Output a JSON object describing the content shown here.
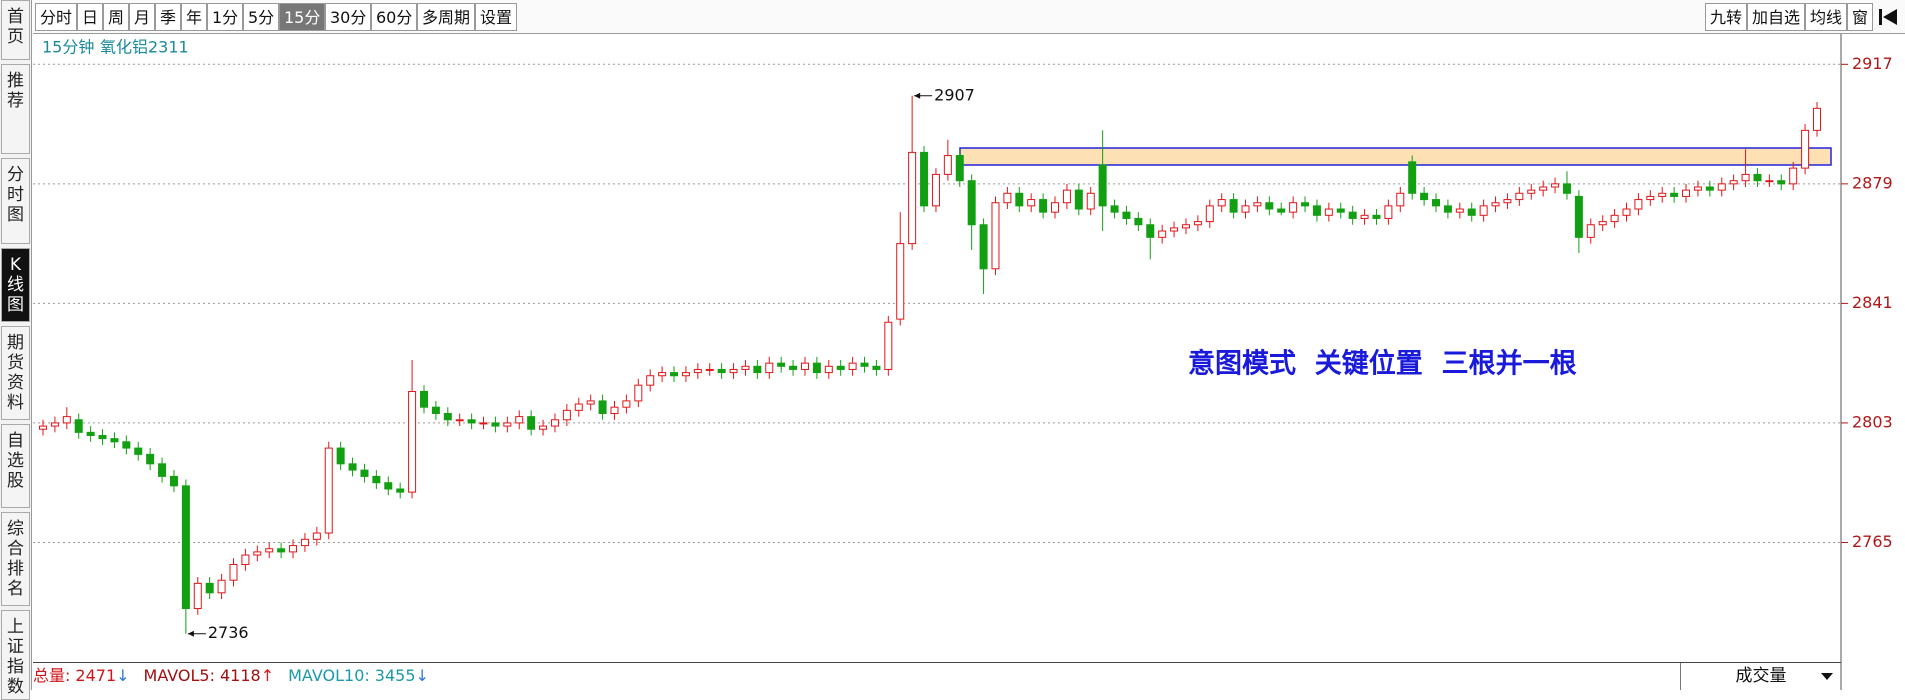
{
  "sidebar": [
    "首页",
    "推荐",
    "分时图",
    "K线图",
    "期货资料",
    "自选股",
    "综合排名",
    "上证指数"
  ],
  "sidebar_active": "K线图",
  "toolbar": {
    "periods": [
      "分时",
      "日",
      "周",
      "月",
      "季",
      "年",
      "1分",
      "5分",
      "15分",
      "30分",
      "60分",
      "多周期",
      "设置"
    ],
    "selected": "15分",
    "right_tools": [
      "九转",
      "加自选",
      "均线",
      "窗"
    ]
  },
  "chart_data": {
    "type": "candlestick",
    "title": "15分钟",
    "subtitle": "氧化铝2311",
    "open": [
      2801,
      2802,
      2803,
      2804,
      2800,
      2799,
      2798,
      2797,
      2795,
      2793,
      2790,
      2786,
      2783,
      2744,
      2752,
      2749,
      2753,
      2758,
      2761,
      2762,
      2763,
      2762,
      2764,
      2766,
      2768,
      2795,
      2790,
      2788,
      2786,
      2784,
      2782,
      2781,
      2813,
      2808,
      2806,
      2804,
      2804,
      2803,
      2803,
      2802,
      2803,
      2805,
      2801,
      2802,
      2804,
      2807,
      2809,
      2810,
      2806,
      2808,
      2810,
      2815,
      2818,
      2819,
      2818,
      2819,
      2820,
      2820,
      2819,
      2820,
      2821,
      2819,
      2822,
      2821,
      2820,
      2822,
      2819,
      2821,
      2820,
      2822,
      2821,
      2820,
      2836,
      2860,
      2889,
      2872,
      2882,
      2888,
      2880,
      2866,
      2852,
      2873,
      2876,
      2872,
      2874,
      2870,
      2873,
      2877,
      2871,
      2885,
      2872,
      2870,
      2868,
      2866,
      2862,
      2864,
      2865,
      2866,
      2867,
      2872,
      2874,
      2870,
      2872,
      2873,
      2871,
      2870,
      2873,
      2872,
      2869,
      2871,
      2870,
      2868,
      2869,
      2868,
      2872,
      2886,
      2876,
      2874,
      2872,
      2870,
      2871,
      2869,
      2872,
      2873,
      2874,
      2876,
      2877,
      2878,
      2879,
      2875,
      2862,
      2866,
      2867,
      2869,
      2871,
      2874,
      2875,
      2876,
      2875,
      2877,
      2878,
      2877,
      2879,
      2880,
      2882,
      2880,
      2880,
      2879,
      2884,
      2896
    ],
    "high": [
      2804,
      2805,
      2808,
      2806,
      2802,
      2801,
      2800,
      2799,
      2797,
      2795,
      2792,
      2788,
      2785,
      2754,
      2754,
      2755,
      2760,
      2763,
      2764,
      2765,
      2765,
      2766,
      2768,
      2770,
      2797,
      2797,
      2792,
      2790,
      2788,
      2786,
      2784,
      2823,
      2815,
      2810,
      2808,
      2806,
      2806,
      2805,
      2805,
      2805,
      2807,
      2807,
      2804,
      2806,
      2809,
      2811,
      2812,
      2812,
      2810,
      2812,
      2817,
      2820,
      2821,
      2821,
      2821,
      2822,
      2822,
      2822,
      2822,
      2823,
      2823,
      2824,
      2824,
      2823,
      2824,
      2824,
      2823,
      2823,
      2824,
      2824,
      2823,
      2837,
      2870,
      2907,
      2891,
      2884,
      2893,
      2890,
      2882,
      2868,
      2875,
      2878,
      2878,
      2876,
      2876,
      2875,
      2879,
      2879,
      2878,
      2896,
      2874,
      2872,
      2870,
      2868,
      2866,
      2867,
      2868,
      2869,
      2874,
      2876,
      2876,
      2874,
      2875,
      2875,
      2873,
      2875,
      2875,
      2874,
      2873,
      2873,
      2872,
      2871,
      2871,
      2874,
      2878,
      2888,
      2878,
      2876,
      2874,
      2873,
      2873,
      2874,
      2875,
      2876,
      2878,
      2879,
      2880,
      2881,
      2883,
      2877,
      2868,
      2869,
      2871,
      2873,
      2876,
      2877,
      2878,
      2878,
      2879,
      2880,
      2880,
      2881,
      2882,
      2890,
      2884,
      2882,
      2882,
      2886,
      2898,
      2905
    ],
    "low": [
      2799,
      2800,
      2801,
      2798,
      2797,
      2796,
      2795,
      2793,
      2791,
      2788,
      2784,
      2781,
      2736,
      2742,
      2747,
      2747,
      2751,
      2756,
      2759,
      2760,
      2760,
      2760,
      2762,
      2764,
      2766,
      2788,
      2786,
      2784,
      2782,
      2780,
      2779,
      2779,
      2806,
      2804,
      2802,
      2802,
      2801,
      2801,
      2800,
      2800,
      2801,
      2799,
      2799,
      2800,
      2802,
      2805,
      2807,
      2804,
      2804,
      2806,
      2808,
      2813,
      2816,
      2816,
      2816,
      2817,
      2818,
      2817,
      2817,
      2818,
      2817,
      2817,
      2819,
      2818,
      2818,
      2817,
      2817,
      2818,
      2818,
      2819,
      2818,
      2818,
      2834,
      2858,
      2870,
      2870,
      2880,
      2878,
      2858,
      2844,
      2850,
      2871,
      2870,
      2870,
      2868,
      2868,
      2871,
      2869,
      2869,
      2864,
      2868,
      2866,
      2864,
      2855,
      2860,
      2862,
      2863,
      2864,
      2865,
      2870,
      2868,
      2868,
      2870,
      2869,
      2869,
      2868,
      2870,
      2867,
      2867,
      2868,
      2866,
      2866,
      2866,
      2866,
      2870,
      2874,
      2872,
      2870,
      2868,
      2868,
      2867,
      2867,
      2870,
      2871,
      2872,
      2874,
      2875,
      2876,
      2874,
      2857,
      2860,
      2864,
      2865,
      2867,
      2869,
      2872,
      2873,
      2873,
      2873,
      2875,
      2875,
      2875,
      2877,
      2878,
      2878,
      2878,
      2877,
      2877,
      2882,
      2894
    ],
    "close": [
      2802,
      2803,
      2805,
      2800,
      2799,
      2798,
      2797,
      2795,
      2793,
      2790,
      2786,
      2783,
      2744,
      2752,
      2749,
      2753,
      2758,
      2761,
      2762,
      2763,
      2762,
      2764,
      2766,
      2768,
      2795,
      2790,
      2788,
      2786,
      2784,
      2782,
      2781,
      2813,
      2808,
      2806,
      2804,
      2804,
      2803,
      2803,
      2802,
      2803,
      2805,
      2801,
      2802,
      2804,
      2807,
      2809,
      2810,
      2806,
      2808,
      2810,
      2815,
      2818,
      2819,
      2818,
      2819,
      2820,
      2820,
      2819,
      2820,
      2821,
      2819,
      2822,
      2821,
      2820,
      2822,
      2819,
      2821,
      2820,
      2822,
      2821,
      2820,
      2835,
      2860,
      2889,
      2872,
      2882,
      2888,
      2880,
      2866,
      2852,
      2873,
      2876,
      2872,
      2874,
      2870,
      2873,
      2877,
      2871,
      2876,
      2872,
      2870,
      2868,
      2866,
      2862,
      2864,
      2865,
      2866,
      2867,
      2872,
      2874,
      2870,
      2872,
      2873,
      2871,
      2870,
      2873,
      2872,
      2869,
      2871,
      2870,
      2868,
      2869,
      2868,
      2872,
      2876,
      2876,
      2874,
      2872,
      2870,
      2871,
      2869,
      2872,
      2873,
      2874,
      2876,
      2877,
      2878,
      2879,
      2876,
      2862,
      2866,
      2867,
      2869,
      2871,
      2874,
      2875,
      2876,
      2875,
      2877,
      2878,
      2877,
      2879,
      2880,
      2882,
      2880,
      2880,
      2879,
      2884,
      2896,
      2903
    ],
    "up_color": "#e0161a",
    "down_color": "#12a012",
    "ylim": [
      2727,
      2926
    ],
    "yticks": [
      2765,
      2803,
      2841,
      2879,
      2917
    ],
    "grid": true,
    "high_marker": 2907,
    "low_marker": 2736,
    "annotation": "意图模式  关键位置  三根并一根"
  },
  "volume_panel": {
    "items": [
      {
        "label": "总量:",
        "value": 2471,
        "arrow": "↓",
        "color": "#d0151a"
      },
      {
        "label": "MAVOL5:",
        "value": 4118,
        "arrow": "↑",
        "color": "#a01010"
      },
      {
        "label": "MAVOL10:",
        "value": 3455,
        "arrow": "↓",
        "color": "#1a9aa8"
      }
    ],
    "indicator": "成交量"
  }
}
